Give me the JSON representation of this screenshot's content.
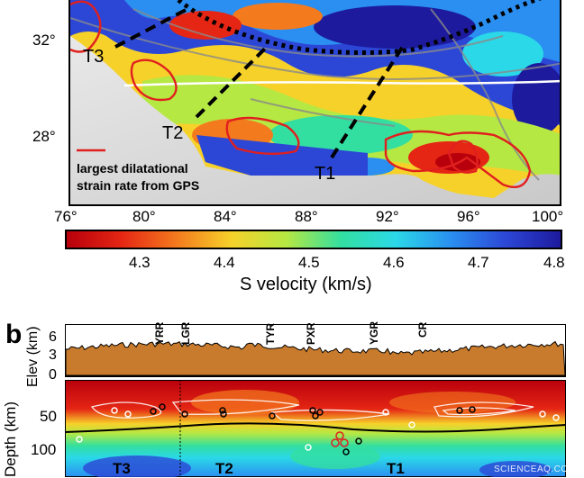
{
  "map": {
    "lat_ticks": [
      "32°",
      "28°"
    ],
    "lon_ticks": [
      "76°",
      "80°",
      "84°",
      "88°",
      "92°",
      "96°",
      "100°"
    ],
    "profile_labels": [
      "T3",
      "T2",
      "T1"
    ],
    "legend_line1": "largest dilatational",
    "legend_line2": "strain rate from GPS",
    "legend_color": "#e0201e"
  },
  "colorbar": {
    "ticks": [
      "4.3",
      "4.4",
      "4.5",
      "4.6",
      "4.7",
      "4.8"
    ],
    "title": "S velocity (km/s)",
    "colors": [
      "#b8000c",
      "#e52614",
      "#f47a1e",
      "#f6d12a",
      "#b6e843",
      "#33dfa0",
      "#2bd8e8",
      "#2a8ff0",
      "#2c47d6",
      "#1d1a9e"
    ]
  },
  "panel_b": {
    "label": "b",
    "elev_axis_title": "Elev (km)",
    "elev_ticks": [
      "6",
      "3",
      "0"
    ],
    "depth_axis_title": "Depth (km)",
    "depth_ticks": [
      "50",
      "100"
    ],
    "rivers": [
      "YRR",
      "LGR",
      "TYR",
      "PXR",
      "YGR",
      "CR"
    ],
    "profiles": [
      "T3",
      "T2",
      "T1"
    ],
    "terrain_color": "#c87b2c"
  },
  "watermark": "SCIENCEAQ.COM"
}
